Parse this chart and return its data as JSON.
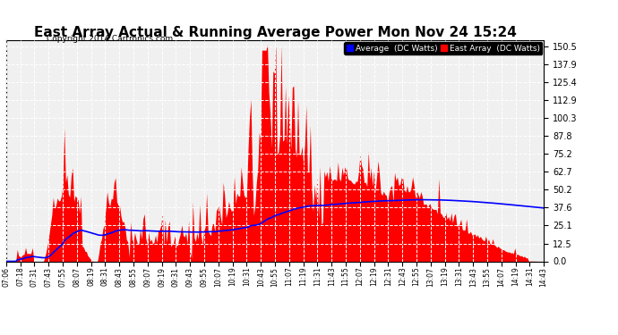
{
  "title": "East Array Actual & Running Average Power Mon Nov 24 15:24",
  "copyright": "Copyright 2014 Cartronics.com",
  "legend_avg": "Average  (DC Watts)",
  "legend_east": "East Array  (DC Watts)",
  "yticks": [
    0.0,
    12.5,
    25.1,
    37.6,
    50.2,
    62.7,
    75.2,
    87.8,
    100.3,
    112.9,
    125.4,
    137.9,
    150.5
  ],
  "ymax": 155,
  "bg_color": "#ffffff",
  "plot_bg_color": "#f0f0f0",
  "bar_color": "#ff0000",
  "avg_color": "#0000ff",
  "grid_color": "#ffffff",
  "title_fontsize": 11,
  "copyright_fontsize": 6.5,
  "xtick_labels": [
    "07:06",
    "07:18",
    "07:31",
    "07:43",
    "07:55",
    "08:07",
    "08:19",
    "08:31",
    "08:43",
    "08:55",
    "09:07",
    "09:19",
    "09:31",
    "09:43",
    "09:55",
    "10:07",
    "10:19",
    "10:31",
    "10:43",
    "10:55",
    "11:07",
    "11:19",
    "11:31",
    "11:43",
    "11:55",
    "12:07",
    "12:19",
    "12:31",
    "12:43",
    "12:55",
    "13:07",
    "13:19",
    "13:31",
    "13:43",
    "13:55",
    "14:07",
    "14:19",
    "14:31",
    "14:43"
  ]
}
